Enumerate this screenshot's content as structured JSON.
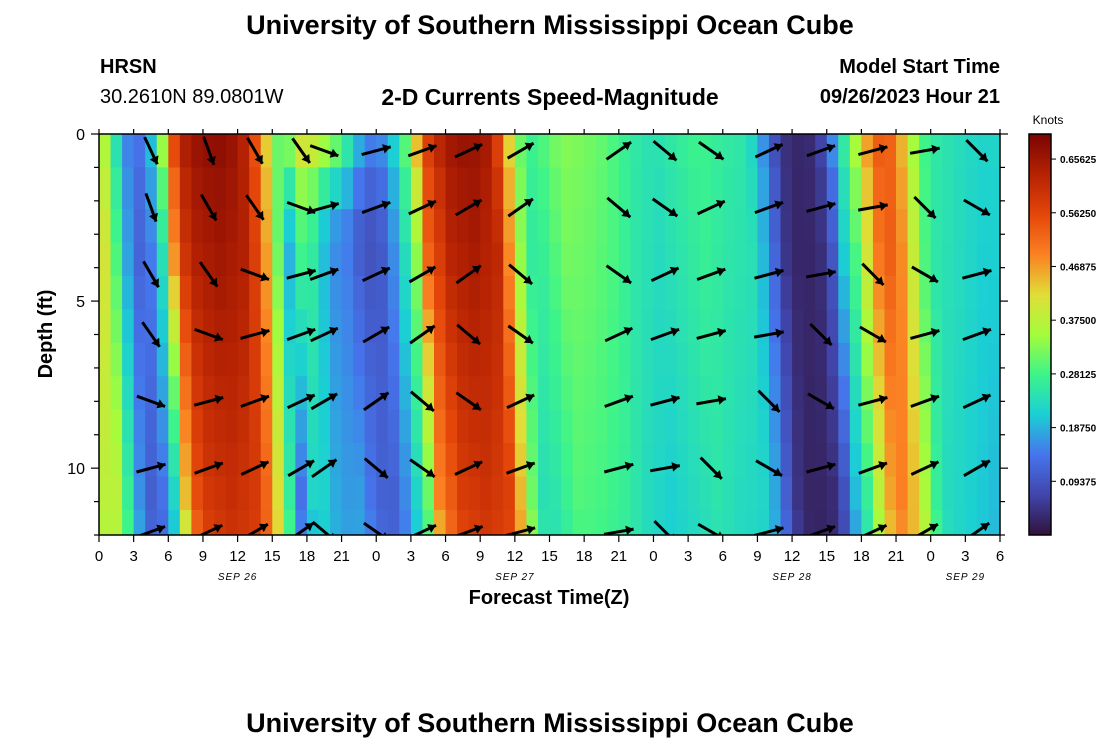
{
  "header": {
    "title": "University of Southern Mississippi Ocean Cube",
    "station": "HRSN",
    "coordinates": "30.2610N  89.0801W",
    "plot_title": "2-D Currents Speed-Magnitude",
    "model_start_label": "Model Start Time",
    "model_start_value": "09/26/2023 Hour 21"
  },
  "footer": {
    "title": "University of Southern Mississippi Ocean Cube"
  },
  "chart_data": {
    "type": "heatmap",
    "title": "2-D Currents Speed-Magnitude",
    "xlabel": "Forecast Time(Z)",
    "ylabel": "Depth (ft)",
    "x_ticks": [
      "0",
      "3",
      "6",
      "9",
      "12",
      "15",
      "18",
      "21",
      "0",
      "3",
      "6",
      "9",
      "12",
      "15",
      "18",
      "21",
      "0",
      "3",
      "6",
      "9",
      "12",
      "15",
      "18",
      "21",
      "0",
      "3",
      "6"
    ],
    "date_labels": [
      {
        "label": "SEP 26",
        "hour": 12
      },
      {
        "label": "SEP 27",
        "hour": 36
      },
      {
        "label": "SEP 28",
        "hour": 60
      },
      {
        "label": "SEP 29",
        "hour": 75
      }
    ],
    "y_ticks": [
      "0",
      "5",
      "10"
    ],
    "ylim": [
      0,
      12
    ],
    "xlim": [
      0,
      78
    ],
    "depth_levels": [
      0.25,
      1.75,
      2.75,
      3.75,
      4.75,
      5.75,
      6.75,
      7.75,
      8.75,
      9.75,
      10.75,
      11.75
    ],
    "colorbar": {
      "unit": "Knots",
      "ticks": [
        "0.09375",
        "0.18750",
        "0.28125",
        "0.37500",
        "0.46875",
        "0.56250",
        "0.65625"
      ],
      "min": 0.0,
      "max": 0.7
    },
    "speed_profile_surface": [
      [
        0,
        0.42
      ],
      [
        1,
        0.3
      ],
      [
        2,
        0.18
      ],
      [
        3,
        0.12
      ],
      [
        4,
        0.15
      ],
      [
        5,
        0.25
      ],
      [
        5.5,
        0.35
      ],
      [
        6,
        0.5
      ],
      [
        7,
        0.62
      ],
      [
        8,
        0.66
      ],
      [
        10,
        0.68
      ],
      [
        12,
        0.66
      ],
      [
        13,
        0.6
      ],
      [
        14,
        0.5
      ],
      [
        15,
        0.36
      ],
      [
        16,
        0.26
      ],
      [
        17,
        0.4
      ],
      [
        18,
        0.42
      ],
      [
        19,
        0.38
      ],
      [
        20,
        0.34
      ],
      [
        21,
        0.3
      ],
      [
        22,
        0.22
      ],
      [
        23,
        0.16
      ],
      [
        24,
        0.14
      ],
      [
        25,
        0.18
      ],
      [
        26,
        0.25
      ],
      [
        27,
        0.35
      ],
      [
        28,
        0.55
      ],
      [
        30,
        0.65
      ],
      [
        32,
        0.67
      ],
      [
        34,
        0.64
      ],
      [
        35,
        0.5
      ],
      [
        36,
        0.35
      ],
      [
        37,
        0.27
      ],
      [
        38,
        0.28
      ],
      [
        40,
        0.33
      ],
      [
        42,
        0.32
      ],
      [
        44,
        0.3
      ],
      [
        46,
        0.26
      ],
      [
        48,
        0.24
      ],
      [
        50,
        0.26
      ],
      [
        52,
        0.28
      ],
      [
        54,
        0.26
      ],
      [
        56,
        0.25
      ],
      [
        57,
        0.2
      ],
      [
        58,
        0.12
      ],
      [
        59,
        0.05
      ],
      [
        60,
        0.03
      ],
      [
        61,
        0.03
      ],
      [
        62,
        0.04
      ],
      [
        63,
        0.1
      ],
      [
        64,
        0.22
      ],
      [
        65,
        0.3
      ],
      [
        66,
        0.42
      ],
      [
        67,
        0.52
      ],
      [
        68,
        0.55
      ],
      [
        69,
        0.5
      ],
      [
        70,
        0.4
      ],
      [
        71,
        0.3
      ],
      [
        72,
        0.26
      ],
      [
        74,
        0.24
      ],
      [
        76,
        0.22
      ],
      [
        78,
        0.22
      ]
    ],
    "arrow_directions_deg": [
      -65,
      -70,
      -60,
      -55,
      -20,
      15,
      20,
      25,
      30,
      35,
      -40,
      -35,
      25,
      20,
      15,
      10,
      -45,
      -30,
      15,
      20,
      25,
      30,
      35,
      -30,
      -25,
      20,
      25
    ],
    "arrow_columns_hours": [
      4.5,
      9.5,
      13.5,
      17.5,
      19.5,
      24.0,
      28.0,
      32.0,
      36.5,
      45.0,
      49.0,
      53.0,
      58.0,
      62.5,
      67.0,
      71.5,
      76.0
    ],
    "arrow_rows_depth": [
      0.5,
      2.2,
      4.2,
      6.0,
      8.0,
      10.0,
      11.9
    ]
  }
}
